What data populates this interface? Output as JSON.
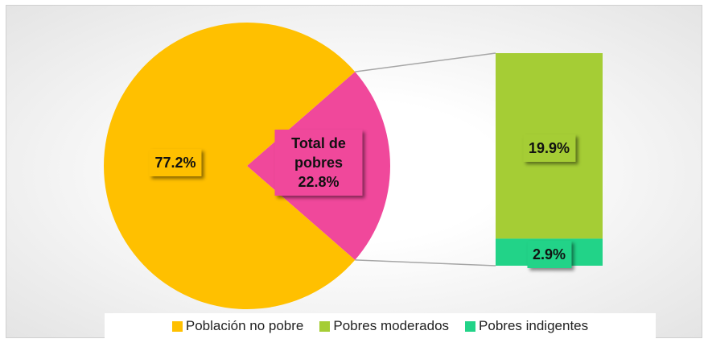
{
  "chart_data": {
    "type": "pie-of-bar",
    "pie": {
      "categories": [
        "Población no pobre",
        "Total de pobres"
      ],
      "values": [
        77.2,
        22.8
      ],
      "value_labels": [
        "77.2%",
        "22.8%"
      ],
      "colors": [
        "#FFC000",
        "#F0489B"
      ]
    },
    "bar": {
      "categories": [
        "Pobres moderados",
        "Pobres indigentes"
      ],
      "values": [
        19.9,
        2.9
      ],
      "value_labels": [
        "19.9%",
        "2.9%"
      ],
      "colors": [
        "#A5CD35",
        "#22D388"
      ]
    }
  }
}
